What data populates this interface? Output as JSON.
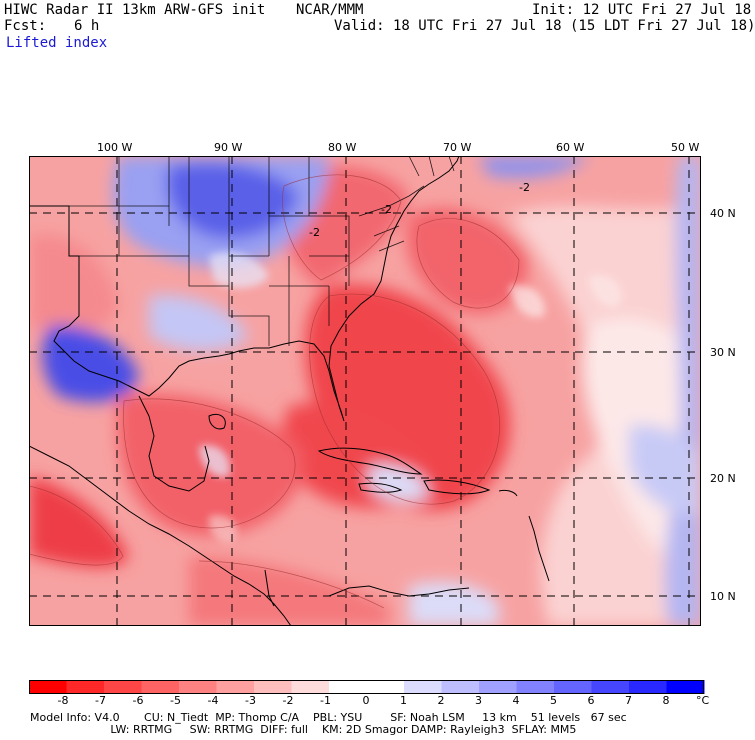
{
  "header": {
    "title": "HIWC Radar II 13km ARW-GFS init",
    "org": "NCAR/MMM",
    "init": "Init: 12 UTC Fri 27 Jul 18",
    "fcst_label": "Fcst:",
    "fcst_value": "6 h",
    "valid": "Valid: 18 UTC Fri 27 Jul 18 (15 LDT Fri 27 Jul 18)",
    "field": "Lifted index"
  },
  "map": {
    "lon_labels": [
      "100 W",
      "90 W",
      "80 W",
      "70 W",
      "60 W",
      "50 W"
    ],
    "lat_labels": [
      "40 N",
      "30 N",
      "20 N",
      "10 N"
    ],
    "contour_labels": [
      "-2",
      "-2",
      "-2"
    ],
    "colors": {
      "strong_neg": "#f0404a",
      "mid_neg": "#f56a6e",
      "weak_neg": "#f9a6a6",
      "near_zero": "#fde6e6",
      "weak_pos": "#c8c8f5",
      "mid_pos": "#8a8ef0",
      "strong_pos": "#3f3fe0"
    }
  },
  "colorbar": {
    "ticks": [
      "-8",
      "-7",
      "-6",
      "-5",
      "-4",
      "-3",
      "-2",
      "-1",
      "0",
      "1",
      "2",
      "3",
      "4",
      "5",
      "6",
      "7",
      "8"
    ],
    "unit": "°C",
    "colors": [
      "#ff0000",
      "#ff2828",
      "#ff4646",
      "#ff6464",
      "#ff8282",
      "#ffa0a0",
      "#ffbebe",
      "#ffdcdc",
      "#ffffff",
      "#ffffff",
      "#dcdcff",
      "#bebeff",
      "#a0a0ff",
      "#8282ff",
      "#6464ff",
      "#4646ff",
      "#2828ff",
      "#0000ff"
    ]
  },
  "footer": {
    "line1": "Model Info: V4.0       CU: N_Tiedt  MP: Thomp C/A    PBL: YSU        SF: Noah LSM     13 km    51 levels   67 sec",
    "line2": "                       LW: RRTMG     SW: RRTMG  DIFF: full    KM: 2D Smagor DAMP: Rayleigh3  SFLAY: MM5"
  }
}
